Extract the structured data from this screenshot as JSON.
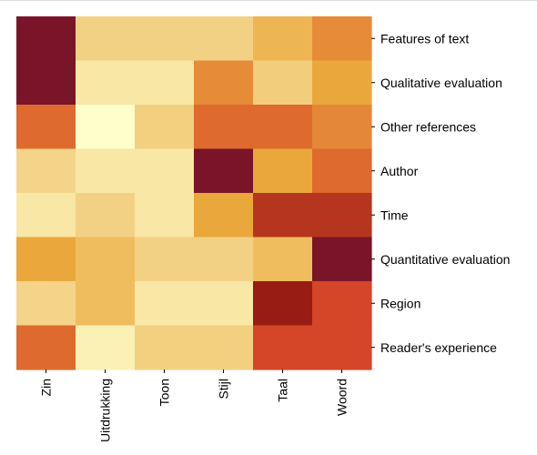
{
  "chart_data": {
    "type": "heatmap",
    "title": "",
    "xlabel": "",
    "ylabel": "",
    "colormap": "YlOrRd",
    "x_categories": [
      "Zin",
      "Uitdrukking",
      "Toon",
      "Stijl",
      "Taal",
      "Woord"
    ],
    "y_categories": [
      "Features of text",
      "Qualitative evaluation",
      "Other references",
      "Author",
      "Time",
      "Quantitative evaluation",
      "Region",
      "Reader's experience"
    ],
    "values": [
      [
        1.0,
        0.2,
        0.2,
        0.2,
        0.32,
        0.44
      ],
      [
        1.0,
        0.12,
        0.12,
        0.44,
        0.22,
        0.36
      ],
      [
        0.52,
        0.0,
        0.21,
        0.52,
        0.52,
        0.45
      ],
      [
        0.19,
        0.12,
        0.12,
        1.0,
        0.36,
        0.52
      ],
      [
        0.12,
        0.2,
        0.12,
        0.36,
        0.75,
        0.75
      ],
      [
        0.36,
        0.3,
        0.2,
        0.2,
        0.3,
        1.0
      ],
      [
        0.19,
        0.3,
        0.12,
        0.12,
        0.85,
        0.65
      ],
      [
        0.52,
        0.07,
        0.21,
        0.21,
        0.65,
        0.65
      ]
    ],
    "grid": false,
    "legend": "none",
    "colorbar": false
  }
}
